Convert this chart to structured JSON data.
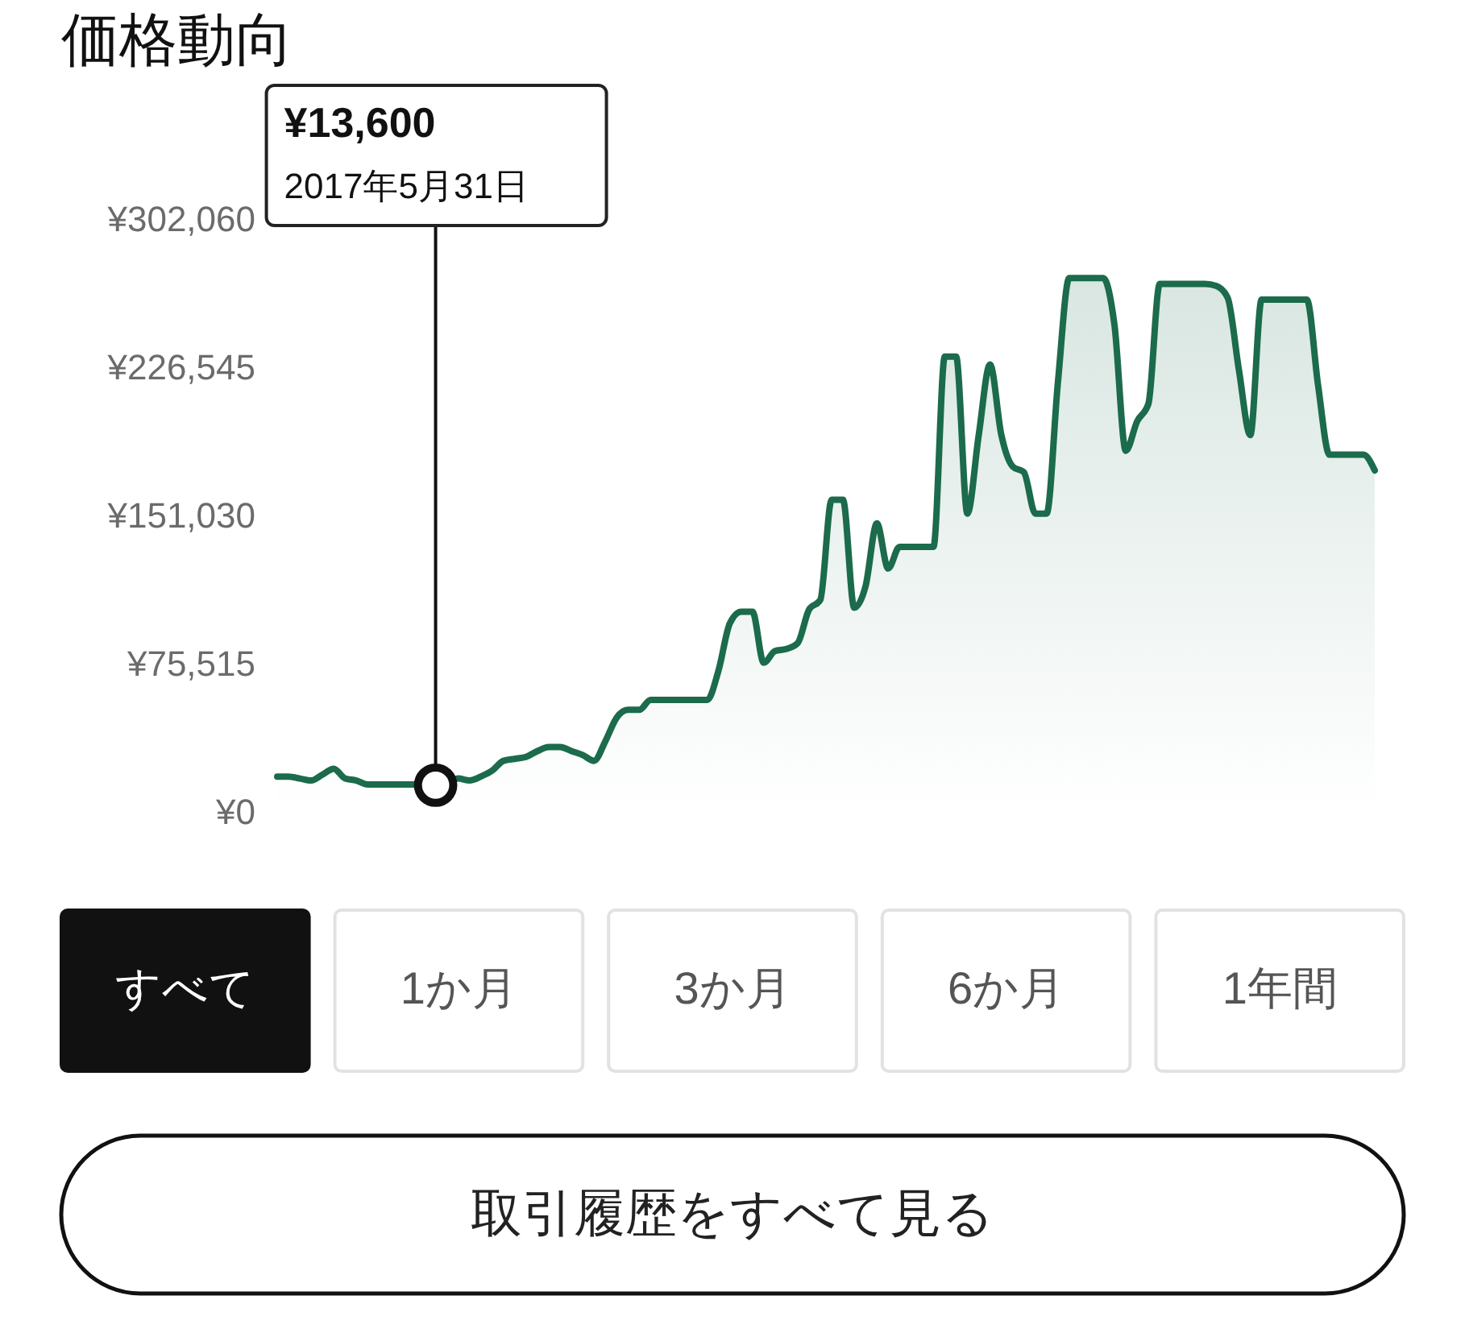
{
  "chart_data": {
    "type": "area",
    "title": "価格動向",
    "categories": [
      null,
      null,
      null,
      null,
      null,
      null,
      null,
      null,
      null,
      null,
      null,
      null,
      null,
      null,
      null,
      null,
      null,
      null,
      null,
      null,
      null,
      null,
      null,
      null,
      null,
      null,
      null,
      null,
      null,
      null,
      null,
      null,
      null,
      null,
      null,
      null,
      null,
      null,
      null,
      null,
      null,
      null,
      null,
      null,
      null,
      null,
      null,
      null,
      null,
      null,
      null,
      null,
      null,
      null,
      null,
      null,
      null,
      null,
      null,
      null,
      null,
      null,
      null,
      null,
      null,
      null,
      null,
      null,
      null,
      null,
      null,
      null,
      null,
      null,
      null,
      null,
      null,
      null,
      null,
      null,
      null,
      null,
      null,
      null,
      null,
      null,
      null,
      null,
      null,
      null,
      null,
      null,
      null,
      null,
      null,
      null,
      null,
      null
    ],
    "series": [
      {
        "color": "#1b6b4c",
        "values": [
          18000,
          18000,
          17000,
          16000,
          19000,
          22000,
          17000,
          16000,
          14000,
          14000,
          14000,
          14000,
          14000,
          14000,
          14000,
          15000,
          17000,
          16000,
          18000,
          21000,
          26000,
          27000,
          28000,
          31000,
          33000,
          33000,
          31000,
          29000,
          26000,
          36000,
          48000,
          52000,
          52000,
          57000,
          57000,
          57000,
          57000,
          57000,
          57000,
          72000,
          96000,
          102000,
          102000,
          76000,
          82000,
          83000,
          86000,
          103000,
          108000,
          159000,
          159000,
          104000,
          115000,
          147000,
          124000,
          135000,
          135000,
          135000,
          135000,
          232000,
          232000,
          152000,
          192000,
          228000,
          192000,
          176000,
          173000,
          152000,
          152000,
          219000,
          272000,
          272000,
          272000,
          272000,
          248000,
          184000,
          199000,
          208000,
          269000,
          269000,
          269000,
          269000,
          269000,
          268000,
          262000,
          225000,
          192000,
          261000,
          261000,
          261000,
          261000,
          261000,
          217000,
          182000,
          182000,
          182000,
          182000,
          174000
        ]
      },
      {
        "type": "scatter",
        "color": "#111111",
        "values": [
          null,
          null,
          null,
          null,
          null,
          null,
          null,
          null,
          null,
          null,
          null,
          null,
          null,
          null,
          13600,
          null,
          null,
          null,
          null,
          null,
          null,
          null,
          null,
          null,
          null,
          null,
          null,
          null,
          null,
          null,
          null,
          null,
          null,
          null,
          null,
          null,
          null,
          null,
          null,
          null,
          null,
          null,
          null,
          null,
          null,
          null,
          null,
          null,
          null,
          null,
          null,
          null,
          null,
          null,
          null,
          null,
          null,
          null,
          null,
          null,
          null,
          null,
          null,
          null,
          null,
          null,
          null,
          null,
          null,
          null,
          null,
          null,
          null,
          null,
          null,
          null,
          null,
          null,
          null,
          null,
          null,
          null,
          null,
          null,
          null,
          null,
          null,
          null,
          null,
          null,
          null,
          null,
          null,
          null,
          null,
          null,
          null,
          null
        ]
      }
    ],
    "ylim": [
      0,
      302060
    ],
    "yticks": [
      {
        "value": 0,
        "label": "¥0"
      },
      {
        "value": 75515,
        "label": "¥75,515"
      },
      {
        "value": 151030,
        "label": "¥151,030"
      },
      {
        "value": 226545,
        "label": "¥226,545"
      },
      {
        "value": 302060,
        "label": "¥302,060"
      }
    ],
    "annotations": [
      "¥13,600\n2017年5月31日",
      "すべて",
      "1か月",
      "3か月",
      "6か月",
      "1年間",
      "取引履歴をすべて見る"
    ]
  }
}
